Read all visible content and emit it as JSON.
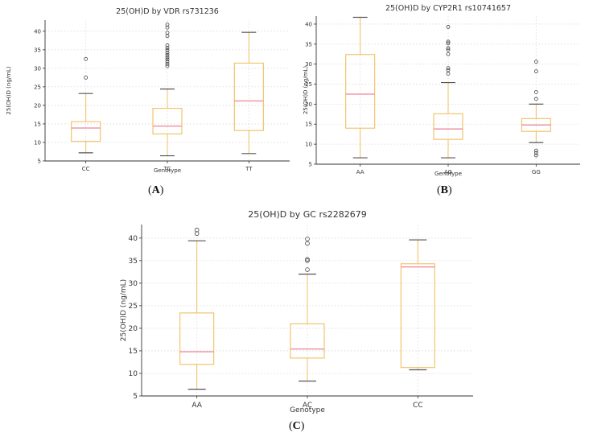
{
  "figure": {
    "panel_labels": [
      "A",
      "B",
      "C"
    ]
  },
  "colors": {
    "box": "#f0c060",
    "median": "#ef8fa0",
    "whisker_cap": "#555555",
    "grid": "#e2e2e2",
    "axis": "#333333",
    "flier": "#444444"
  },
  "chart_data": [
    {
      "type": "box",
      "title": "25(OH)D by VDR rs731236",
      "xlabel": "Genotype",
      "ylabel": "25(OH)D (ng/mL)",
      "ylim": [
        5,
        43
      ],
      "yticks": [
        5,
        10,
        15,
        20,
        25,
        30,
        35,
        40
      ],
      "categories": [
        "CC",
        "TC",
        "TT"
      ],
      "boxes": [
        {
          "whislo": 7.2,
          "q1": 10.3,
          "med": 13.9,
          "q3": 15.6,
          "whishi": 23.2,
          "fliers": [
            27.5,
            32.5
          ]
        },
        {
          "whislo": 6.4,
          "q1": 12.3,
          "med": 14.4,
          "q3": 19.2,
          "whishi": 24.4,
          "fliers": [
            30.6,
            31.2,
            31.8,
            32.4,
            33.0,
            33.6,
            34.2,
            34.9,
            35.5,
            36.2,
            38.7,
            39.6,
            41.0,
            41.8
          ]
        },
        {
          "whislo": 7.0,
          "q1": 13.2,
          "med": 21.2,
          "q3": 31.4,
          "whishi": 39.7,
          "fliers": []
        }
      ]
    },
    {
      "type": "box",
      "title": "25(OH)D by CYP2R1 rs10741657",
      "xlabel": "Genotype",
      "ylabel": "25(OH)D (ng/mL)",
      "ylim": [
        5,
        42
      ],
      "yticks": [
        5,
        10,
        15,
        20,
        25,
        30,
        35,
        40
      ],
      "categories": [
        "AA",
        "AG",
        "GG"
      ],
      "boxes": [
        {
          "whislo": 6.6,
          "q1": 14.0,
          "med": 22.5,
          "q3": 32.4,
          "whishi": 41.7,
          "fliers": []
        },
        {
          "whislo": 6.6,
          "q1": 11.2,
          "med": 13.8,
          "q3": 17.6,
          "whishi": 25.4,
          "fliers": [
            27.6,
            28.5,
            29.0,
            32.5,
            33.6,
            34.0,
            35.2,
            35.6,
            39.3
          ]
        },
        {
          "whislo": 10.4,
          "q1": 13.2,
          "med": 14.8,
          "q3": 16.4,
          "whishi": 20.0,
          "fliers": [
            7.2,
            7.8,
            8.4,
            21.3,
            23.0,
            28.2,
            30.6
          ]
        }
      ]
    },
    {
      "type": "box",
      "title": "25(OH)D by GC rs2282679",
      "xlabel": "Genotype",
      "ylabel": "25(OH)D (ng/mL)",
      "ylim": [
        5,
        43
      ],
      "yticks": [
        5,
        10,
        15,
        20,
        25,
        30,
        35,
        40
      ],
      "categories": [
        "AA",
        "AC",
        "CC"
      ],
      "boxes": [
        {
          "whislo": 6.5,
          "q1": 12.0,
          "med": 14.8,
          "q3": 23.4,
          "whishi": 39.4,
          "fliers": [
            41.0,
            41.8
          ]
        },
        {
          "whislo": 8.3,
          "q1": 13.4,
          "med": 15.4,
          "q3": 21.0,
          "whishi": 32.0,
          "fliers": [
            33.0,
            35.0,
            35.3,
            38.8,
            39.8
          ]
        },
        {
          "whislo": 10.8,
          "q1": 11.3,
          "med": 33.6,
          "q3": 34.3,
          "whishi": 39.6,
          "fliers": []
        }
      ]
    }
  ]
}
